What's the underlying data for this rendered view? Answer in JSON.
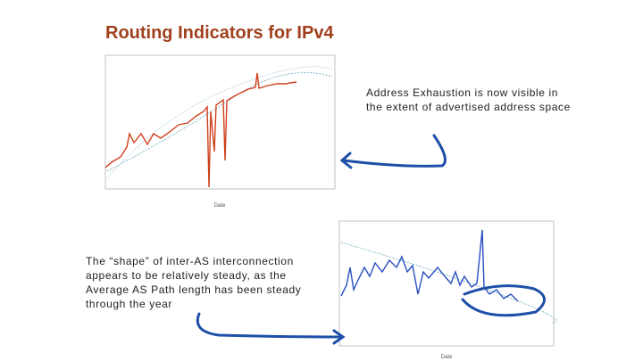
{
  "title": "Routing Indicators for IPv4",
  "callouts": [
    {
      "text": "Address Exhaustion is now visible in the extent of advertised address space"
    },
    {
      "text": "The “shape” of inter-AS interconnection appears to be relatively steady, as the Average AS Path length has been steady through the year"
    }
  ],
  "charts": [
    {
      "x_label": "Date"
    },
    {
      "x_label": "Date"
    }
  ]
}
